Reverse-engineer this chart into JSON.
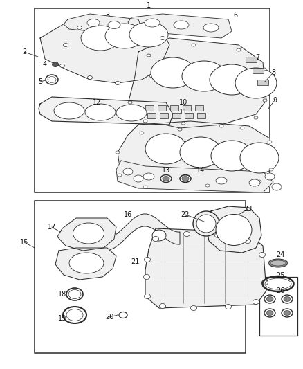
{
  "bg_color": "#ffffff",
  "lc": "#2a2a2a",
  "lw_main": 1.0,
  "lw_thin": 0.6,
  "fs_label": 7.0,
  "fig_w": 4.38,
  "fig_h": 5.33,
  "dpi": 100
}
